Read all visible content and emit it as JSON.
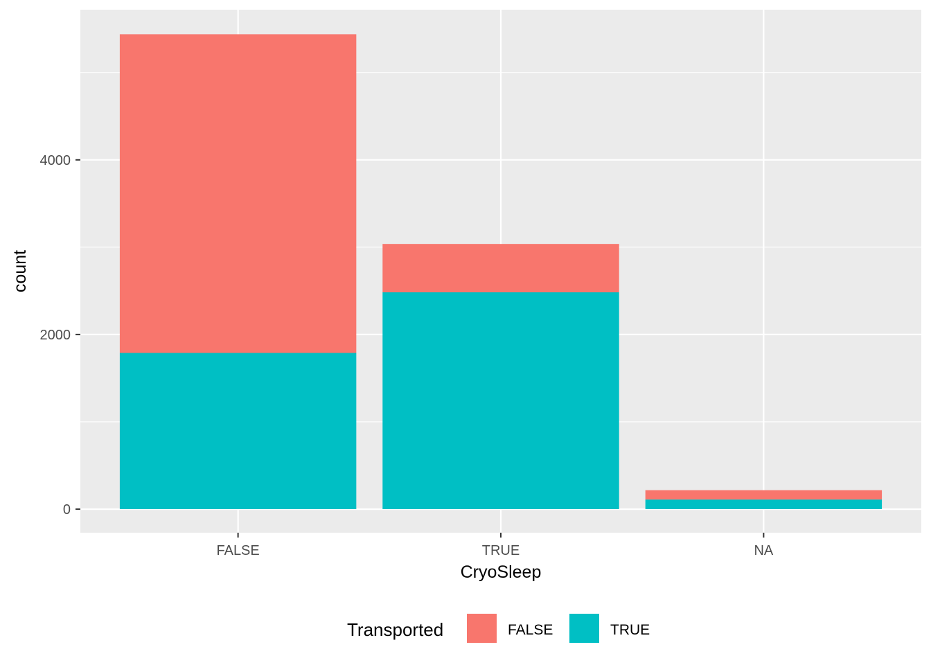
{
  "chart_data": {
    "type": "bar",
    "stacked": true,
    "xlabel": "CryoSleep",
    "ylabel": "count",
    "categories": [
      "FALSE",
      "TRUE",
      "NA"
    ],
    "y_ticks": [
      0,
      2000,
      4000
    ],
    "ylim": [
      -270,
      5720
    ],
    "grid": true,
    "legend": {
      "title": "Transported",
      "position": "bottom",
      "entries": [
        {
          "label": "FALSE",
          "color": "#F8766D"
        },
        {
          "label": "TRUE",
          "color": "#00BFC4"
        }
      ]
    },
    "series": [
      {
        "name": "FALSE",
        "color": "#F8766D",
        "values": [
          3650,
          554,
          107
        ]
      },
      {
        "name": "TRUE",
        "color": "#00BFC4",
        "values": [
          1789,
          2483,
          110
        ]
      }
    ],
    "stack_order": [
      "TRUE",
      "FALSE"
    ],
    "panel_background": "#EBEBEB",
    "grid_color": "#FFFFFF"
  }
}
